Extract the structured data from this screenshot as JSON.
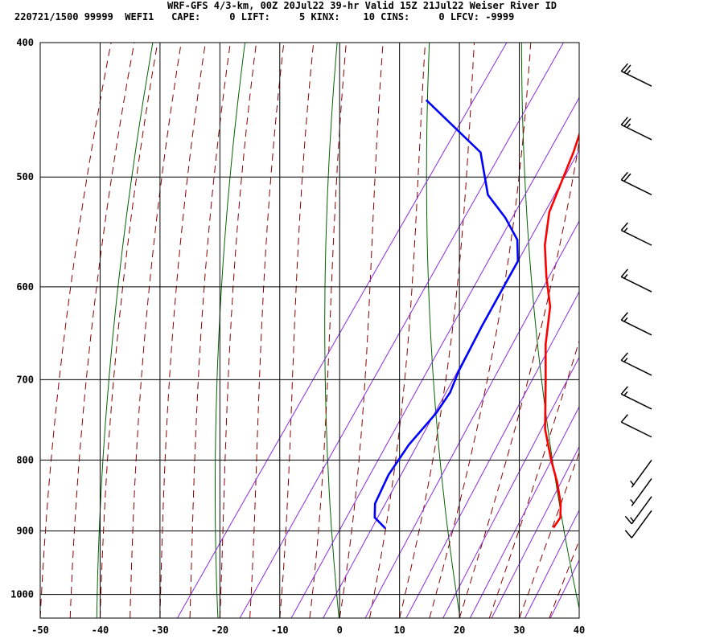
{
  "header": {
    "title": "WRF-GFS 4/3-km, 00Z 20Jul22 39-hr Valid 15Z 21Jul22 Weiser River ID",
    "indices": "220721/1500 99999  WEFI1   CAPE:     0 LIFT:     5 KINX:    10 CINS:     0 LFCV: -9999"
  },
  "colors": {
    "temperature": "#ff0000",
    "dewpoint": "#0000ff",
    "dry_adiabat": "#006400",
    "moist_adiabat": "#8b0000",
    "mixing_ratio": "#8a2be2",
    "grid": "#000000"
  },
  "chart_data": {
    "type": "line",
    "skew_t": true,
    "xlim": [
      -50,
      40
    ],
    "pressure_range": [
      1040,
      400
    ],
    "y_log_scale": true,
    "grid": true,
    "x_ticks": [
      "-50",
      "-40",
      "-30",
      "-20",
      "-10",
      "0",
      "10",
      "20",
      "30",
      "40"
    ],
    "y_ticks": [
      "400",
      "500",
      "600",
      "700",
      "800",
      "900",
      "1000"
    ],
    "series": [
      {
        "key": "temperature",
        "points": [
          [
            895,
            25.5
          ],
          [
            880,
            25.5
          ],
          [
            860,
            24
          ],
          [
            830,
            21
          ],
          [
            800,
            17.5
          ],
          [
            760,
            13
          ],
          [
            700,
            7.5
          ],
          [
            660,
            3.5
          ],
          [
            620,
            0
          ],
          [
            590,
            -4
          ],
          [
            560,
            -7.8
          ],
          [
            530,
            -10.8
          ],
          [
            480,
            -13.5
          ],
          [
            440,
            -16.5
          ]
        ]
      },
      {
        "key": "dewpoint",
        "points": [
          [
            896,
            -2.5
          ],
          [
            880,
            -5.5
          ],
          [
            860,
            -7
          ],
          [
            820,
            -8
          ],
          [
            780,
            -8
          ],
          [
            740,
            -7
          ],
          [
            715,
            -7
          ],
          [
            690,
            -8
          ],
          [
            640,
            -9.2
          ],
          [
            575,
            -10.5
          ],
          [
            555,
            -13
          ],
          [
            535,
            -17.5
          ],
          [
            515,
            -23
          ],
          [
            480,
            -29
          ],
          [
            440,
            -44
          ]
        ]
      }
    ],
    "wind_barbs": [
      {
        "p": 430,
        "speed": 25
      },
      {
        "p": 470,
        "speed": 25
      },
      {
        "p": 515,
        "speed": 20
      },
      {
        "p": 560,
        "speed": 15
      },
      {
        "p": 605,
        "speed": 15
      },
      {
        "p": 650,
        "speed": 15
      },
      {
        "p": 695,
        "speed": 15
      },
      {
        "p": 735,
        "speed": 15
      },
      {
        "p": 770,
        "speed": 10
      },
      {
        "p": 800,
        "speed": 5
      },
      {
        "p": 825,
        "speed": 5
      },
      {
        "p": 850,
        "speed": 15
      },
      {
        "p": 870,
        "speed": 10
      }
    ]
  }
}
